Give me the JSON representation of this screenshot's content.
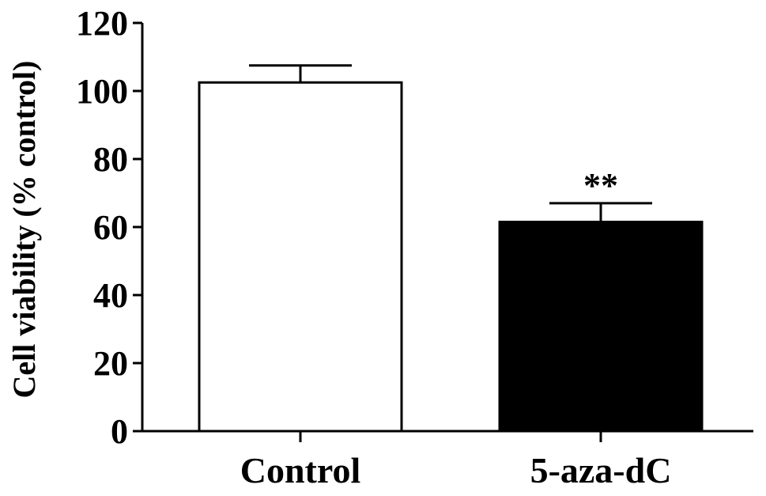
{
  "chart_data": {
    "type": "bar",
    "categories": [
      "Control",
      "5-aza-dC"
    ],
    "values": [
      102.5,
      61.5
    ],
    "error": [
      5,
      5.5
    ],
    "bar_fills": [
      "#ffffff",
      "#000000"
    ],
    "annotations": [
      "",
      "**"
    ],
    "ylabel": "Cell viability (% control)",
    "xlabel": "",
    "ylim": [
      0,
      120
    ],
    "yticks": [
      "0",
      "20",
      "40",
      "60",
      "80",
      "100",
      "120"
    ],
    "grid": false
  }
}
